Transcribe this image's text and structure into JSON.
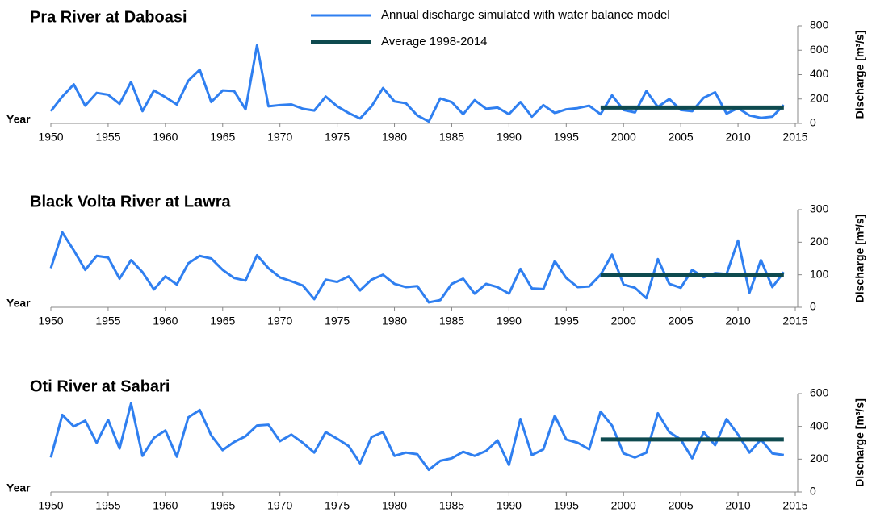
{
  "chart_data": [
    {
      "type": "line",
      "title": "Pra River at Daboasi",
      "xlabel": "Year",
      "ylabel": "Discharge [m³/s]",
      "x": [
        1950,
        1951,
        1952,
        1953,
        1954,
        1955,
        1956,
        1957,
        1958,
        1959,
        1960,
        1961,
        1962,
        1963,
        1964,
        1965,
        1966,
        1967,
        1968,
        1969,
        1970,
        1971,
        1972,
        1973,
        1974,
        1975,
        1976,
        1977,
        1978,
        1979,
        1980,
        1981,
        1982,
        1983,
        1984,
        1985,
        1986,
        1987,
        1988,
        1989,
        1990,
        1991,
        1992,
        1993,
        1994,
        1995,
        1996,
        1997,
        1998,
        1999,
        2000,
        2001,
        2002,
        2003,
        2004,
        2005,
        2006,
        2007,
        2008,
        2009,
        2010,
        2011,
        2012,
        2013,
        2014
      ],
      "xlim": [
        1950,
        2015
      ],
      "xticks": [
        1950,
        1955,
        1960,
        1965,
        1970,
        1975,
        1980,
        1985,
        1990,
        1995,
        2000,
        2005,
        2010,
        2015
      ],
      "ylim": [
        0,
        800
      ],
      "yticks": [
        0,
        200,
        400,
        600,
        800
      ],
      "series": [
        {
          "name": "Annual discharge simulated with water balance model",
          "color": "#2f7ff0",
          "values": [
            100,
            220,
            320,
            145,
            250,
            235,
            160,
            340,
            100,
            270,
            215,
            155,
            350,
            440,
            175,
            270,
            265,
            115,
            640,
            140,
            150,
            155,
            120,
            105,
            220,
            140,
            85,
            40,
            140,
            290,
            180,
            165,
            65,
            15,
            205,
            175,
            75,
            190,
            120,
            130,
            75,
            175,
            55,
            150,
            85,
            115,
            125,
            145,
            75,
            230,
            110,
            90,
            265,
            135,
            200,
            110,
            100,
            210,
            255,
            80,
            125,
            65,
            45,
            55,
            150
          ]
        },
        {
          "name": "Average 1998-2014",
          "color": "#0e4a4f",
          "x": [
            1998,
            2014
          ],
          "values": [
            130,
            130
          ]
        }
      ]
    },
    {
      "type": "line",
      "title": "Black Volta River at Lawra",
      "xlabel": "Year",
      "ylabel": "Discharge [m³/s]",
      "x": [
        1950,
        1951,
        1952,
        1953,
        1954,
        1955,
        1956,
        1957,
        1958,
        1959,
        1960,
        1961,
        1962,
        1963,
        1964,
        1965,
        1966,
        1967,
        1968,
        1969,
        1970,
        1971,
        1972,
        1973,
        1974,
        1975,
        1976,
        1977,
        1978,
        1979,
        1980,
        1981,
        1982,
        1983,
        1984,
        1985,
        1986,
        1987,
        1988,
        1989,
        1990,
        1991,
        1992,
        1993,
        1994,
        1995,
        1996,
        1997,
        1998,
        1999,
        2000,
        2001,
        2002,
        2003,
        2004,
        2005,
        2006,
        2007,
        2008,
        2009,
        2010,
        2011,
        2012,
        2013,
        2014
      ],
      "xlim": [
        1950,
        2015
      ],
      "xticks": [
        1950,
        1955,
        1960,
        1965,
        1970,
        1975,
        1980,
        1985,
        1990,
        1995,
        2000,
        2005,
        2010,
        2015
      ],
      "ylim": [
        0,
        300
      ],
      "yticks": [
        0,
        100,
        200,
        300
      ],
      "series": [
        {
          "color": "#2f7ff0",
          "values": [
            120,
            230,
            175,
            115,
            158,
            153,
            88,
            145,
            108,
            55,
            95,
            70,
            135,
            158,
            150,
            115,
            90,
            82,
            160,
            120,
            92,
            80,
            67,
            25,
            85,
            78,
            95,
            52,
            85,
            100,
            72,
            62,
            65,
            15,
            22,
            72,
            88,
            42,
            72,
            62,
            42,
            118,
            58,
            56,
            142,
            90,
            62,
            64,
            100,
            162,
            70,
            60,
            28,
            148,
            72,
            60,
            115,
            92,
            105,
            102,
            205,
            45,
            145,
            62,
            108
          ]
        },
        {
          "color": "#0e4a4f",
          "x": [
            1998,
            2014
          ],
          "values": [
            100,
            100
          ]
        }
      ]
    },
    {
      "type": "line",
      "title": "Oti River at Sabari",
      "xlabel": "Year",
      "ylabel": "Discharge [m³/s]",
      "x": [
        1950,
        1951,
        1952,
        1953,
        1954,
        1955,
        1956,
        1957,
        1958,
        1959,
        1960,
        1961,
        1962,
        1963,
        1964,
        1965,
        1966,
        1967,
        1968,
        1969,
        1970,
        1971,
        1972,
        1973,
        1974,
        1975,
        1976,
        1977,
        1978,
        1979,
        1980,
        1981,
        1982,
        1983,
        1984,
        1985,
        1986,
        1987,
        1988,
        1989,
        1990,
        1991,
        1992,
        1993,
        1994,
        1995,
        1996,
        1997,
        1998,
        1999,
        2000,
        2001,
        2002,
        2003,
        2004,
        2005,
        2006,
        2007,
        2008,
        2009,
        2010,
        2011,
        2012,
        2013,
        2014
      ],
      "xlim": [
        1950,
        2015
      ],
      "xticks": [
        1950,
        1955,
        1960,
        1965,
        1970,
        1975,
        1980,
        1985,
        1990,
        1995,
        2000,
        2005,
        2010,
        2015
      ],
      "ylim": [
        0,
        600
      ],
      "yticks": [
        0,
        200,
        400,
        600
      ],
      "series": [
        {
          "color": "#2f7ff0",
          "values": [
            210,
            470,
            400,
            435,
            300,
            440,
            265,
            540,
            220,
            330,
            375,
            215,
            455,
            500,
            345,
            255,
            305,
            340,
            405,
            410,
            310,
            350,
            300,
            240,
            365,
            325,
            280,
            175,
            335,
            365,
            220,
            240,
            230,
            135,
            190,
            205,
            245,
            220,
            250,
            315,
            165,
            445,
            225,
            260,
            465,
            320,
            300,
            260,
            490,
            405,
            235,
            210,
            240,
            480,
            365,
            320,
            205,
            365,
            285,
            445,
            350,
            240,
            320,
            235,
            225
          ]
        },
        {
          "color": "#0e4a4f",
          "x": [
            1998,
            2014
          ],
          "values": [
            320,
            320
          ]
        }
      ]
    }
  ]
}
